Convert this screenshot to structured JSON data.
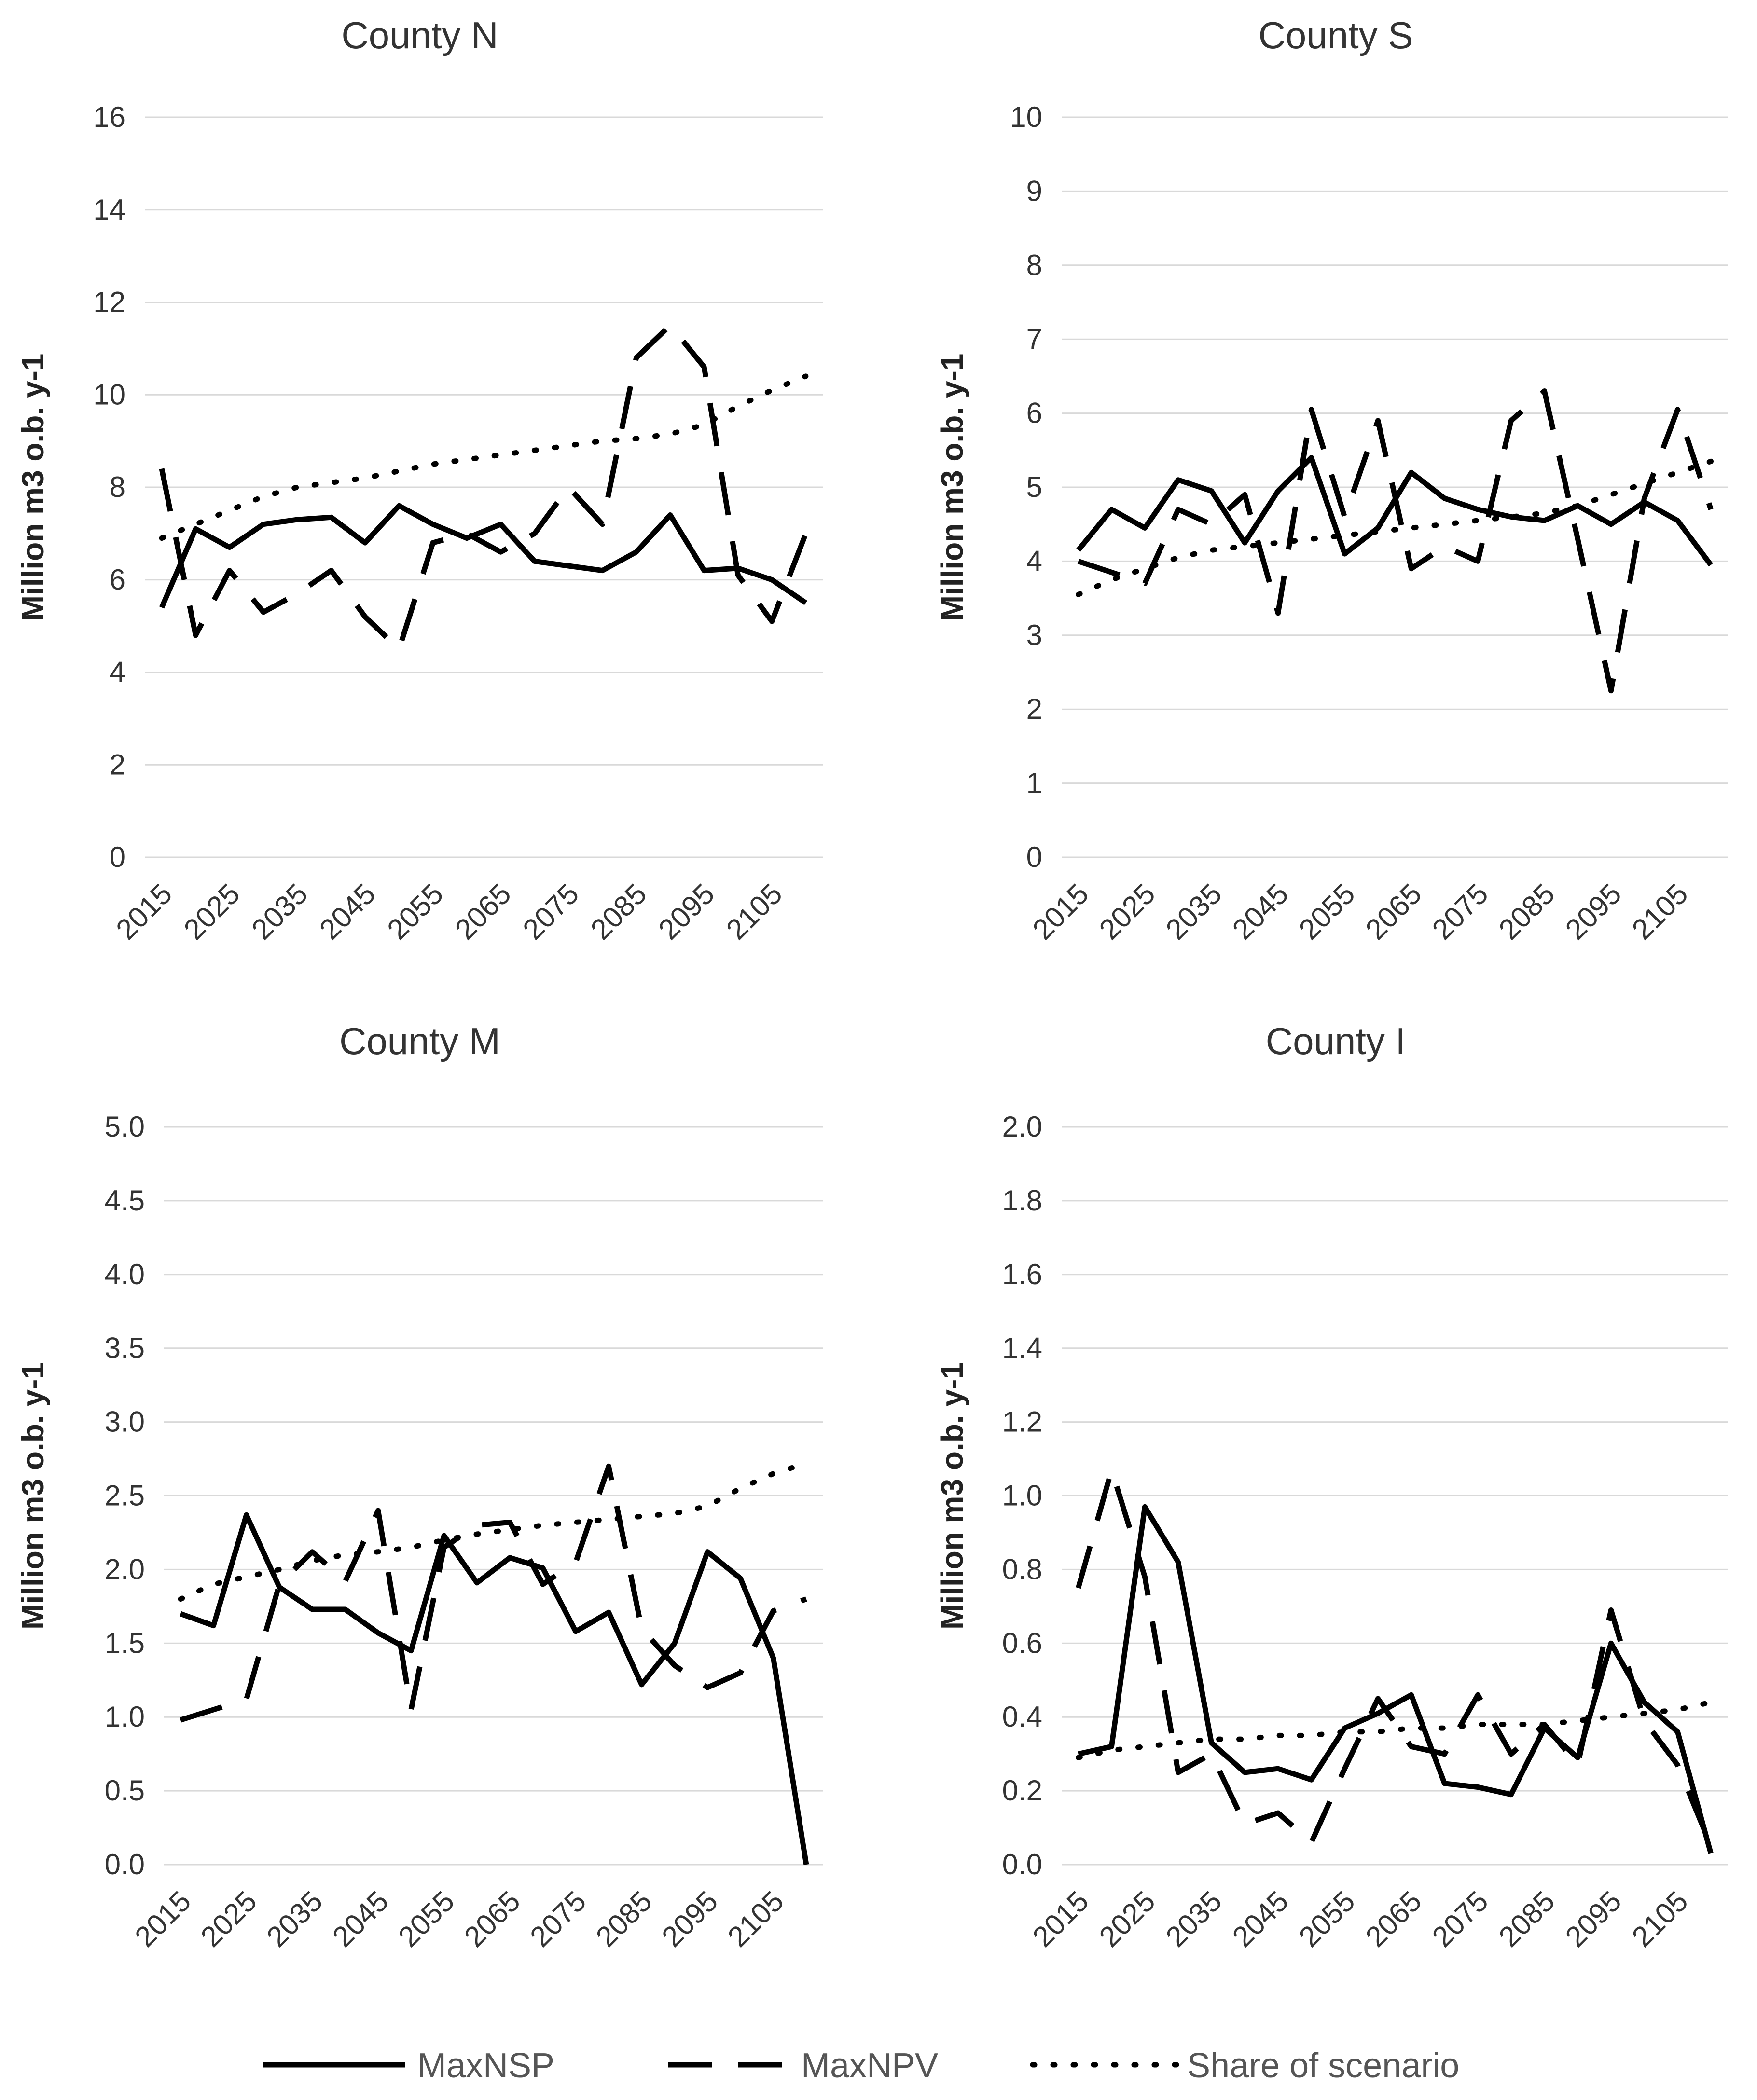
{
  "chart_data": [
    {
      "type": "line",
      "title": "County N",
      "ylabel": "Million m3 o.b. y-1",
      "ylim": [
        0,
        16
      ],
      "yticks": [
        "0",
        "2",
        "4",
        "6",
        "8",
        "10",
        "12",
        "14",
        "16"
      ],
      "xticks": [
        "2015",
        "2025",
        "2035",
        "2045",
        "2055",
        "2065",
        "2075",
        "2085",
        "2095",
        "2105"
      ],
      "x": [
        2015,
        2020,
        2025,
        2030,
        2035,
        2040,
        2045,
        2050,
        2055,
        2060,
        2065,
        2070,
        2075,
        2080,
        2085,
        2090,
        2095,
        2100,
        2105,
        2110
      ],
      "series": [
        {
          "name": "MaxNSP",
          "values": [
            5.4,
            7.1,
            6.7,
            7.2,
            7.3,
            7.35,
            6.8,
            7.6,
            7.2,
            6.9,
            7.2,
            6.4,
            6.3,
            6.2,
            6.6,
            7.4,
            6.2,
            6.25,
            6.0,
            5.5
          ]
        },
        {
          "name": "MaxNPV",
          "values": [
            8.4,
            4.8,
            6.2,
            5.3,
            5.7,
            6.2,
            5.2,
            4.5,
            6.8,
            7.0,
            6.6,
            7.0,
            8.0,
            7.2,
            10.8,
            11.5,
            10.6,
            6.1,
            5.1,
            7.0
          ]
        },
        {
          "name": "Share of scenario",
          "values": [
            6.9,
            7.2,
            7.5,
            7.8,
            8.0,
            8.1,
            8.2,
            8.35,
            8.5,
            8.6,
            8.7,
            8.8,
            8.9,
            9.0,
            9.05,
            9.15,
            9.35,
            9.75,
            10.1,
            10.4
          ]
        }
      ]
    },
    {
      "type": "line",
      "title": "County S",
      "ylabel": "Million m3 o.b. y-1",
      "ylim": [
        0,
        10
      ],
      "yticks": [
        "0",
        "1",
        "2",
        "3",
        "4",
        "5",
        "6",
        "7",
        "8",
        "9",
        "10"
      ],
      "xticks": [
        "2015",
        "2025",
        "2035",
        "2045",
        "2055",
        "2065",
        "2075",
        "2085",
        "2095",
        "2105"
      ],
      "x": [
        2015,
        2020,
        2025,
        2030,
        2035,
        2040,
        2045,
        2050,
        2055,
        2060,
        2065,
        2070,
        2075,
        2080,
        2085,
        2090,
        2095,
        2100,
        2105,
        2110
      ],
      "series": [
        {
          "name": "MaxNSP",
          "values": [
            4.15,
            4.7,
            4.45,
            5.1,
            4.95,
            4.25,
            4.95,
            5.4,
            4.1,
            4.45,
            5.2,
            4.85,
            4.7,
            4.6,
            4.55,
            4.75,
            4.5,
            4.8,
            4.55,
            3.95
          ]
        },
        {
          "name": "MaxNPV",
          "values": [
            4.0,
            3.85,
            3.7,
            4.7,
            4.5,
            4.9,
            3.3,
            6.05,
            4.6,
            5.9,
            3.9,
            4.2,
            4.0,
            5.9,
            6.3,
            4.3,
            2.25,
            4.85,
            6.05,
            4.7
          ]
        },
        {
          "name": "Share of scenario",
          "values": [
            3.55,
            3.75,
            3.9,
            4.05,
            4.15,
            4.2,
            4.25,
            4.3,
            4.35,
            4.4,
            4.45,
            4.5,
            4.55,
            4.6,
            4.65,
            4.75,
            4.9,
            5.05,
            5.2,
            5.35
          ]
        }
      ]
    },
    {
      "type": "line",
      "title": "County M",
      "ylabel": "Million m3 o.b. y-1",
      "ylim": [
        0,
        5
      ],
      "yticks": [
        "0.0",
        "0.5",
        "1.0",
        "1.5",
        "2.0",
        "2.5",
        "3.0",
        "3.5",
        "4.0",
        "4.5",
        "5.0"
      ],
      "xticks": [
        "2015",
        "2025",
        "2035",
        "2045",
        "2055",
        "2065",
        "2075",
        "2085",
        "2095",
        "2105"
      ],
      "x": [
        2015,
        2020,
        2025,
        2030,
        2035,
        2040,
        2045,
        2050,
        2055,
        2060,
        2065,
        2070,
        2075,
        2080,
        2085,
        2090,
        2095,
        2100,
        2105,
        2110
      ],
      "series": [
        {
          "name": "MaxNSP",
          "values": [
            1.7,
            1.62,
            2.37,
            1.88,
            1.73,
            1.73,
            1.57,
            1.45,
            2.23,
            1.91,
            2.08,
            2.01,
            1.58,
            1.71,
            1.22,
            1.5,
            2.12,
            1.94,
            1.4,
            0.0
          ]
        },
        {
          "name": "MaxNPV",
          "values": [
            0.98,
            1.05,
            1.12,
            1.9,
            2.12,
            1.92,
            2.4,
            1.05,
            2.15,
            2.3,
            2.32,
            1.9,
            2.05,
            2.7,
            1.6,
            1.35,
            1.2,
            1.3,
            1.72,
            1.8
          ]
        },
        {
          "name": "Share of scenario",
          "values": [
            1.8,
            1.9,
            1.95,
            2.0,
            2.06,
            2.1,
            2.12,
            2.15,
            2.2,
            2.24,
            2.27,
            2.3,
            2.32,
            2.34,
            2.36,
            2.38,
            2.43,
            2.55,
            2.65,
            2.72
          ]
        }
      ]
    },
    {
      "type": "line",
      "title": "County I",
      "ylabel": "Million m3 o.b. y-1",
      "ylim": [
        0,
        2
      ],
      "yticks": [
        "0.0",
        "0.2",
        "0.4",
        "0.6",
        "0.8",
        "1.0",
        "1.2",
        "1.4",
        "1.6",
        "1.8",
        "2.0"
      ],
      "xticks": [
        "2015",
        "2025",
        "2035",
        "2045",
        "2055",
        "2065",
        "2075",
        "2085",
        "2095",
        "2105"
      ],
      "x": [
        2015,
        2020,
        2025,
        2030,
        2035,
        2040,
        2045,
        2050,
        2055,
        2060,
        2065,
        2070,
        2075,
        2080,
        2085,
        2090,
        2095,
        2100,
        2105,
        2110
      ],
      "series": [
        {
          "name": "MaxNSP",
          "values": [
            0.3,
            0.32,
            0.97,
            0.82,
            0.33,
            0.25,
            0.26,
            0.23,
            0.37,
            0.41,
            0.46,
            0.22,
            0.21,
            0.19,
            0.37,
            0.29,
            0.6,
            0.44,
            0.36,
            0.03
          ]
        },
        {
          "name": "MaxNPV",
          "values": [
            0.75,
            1.07,
            0.78,
            0.25,
            0.3,
            0.11,
            0.14,
            0.06,
            0.26,
            0.45,
            0.32,
            0.3,
            0.46,
            0.3,
            0.38,
            0.27,
            0.69,
            0.39,
            0.27,
            0.05
          ]
        },
        {
          "name": "Share of scenario",
          "values": [
            0.29,
            0.31,
            0.32,
            0.33,
            0.34,
            0.34,
            0.35,
            0.35,
            0.36,
            0.36,
            0.37,
            0.37,
            0.38,
            0.38,
            0.38,
            0.39,
            0.4,
            0.41,
            0.42,
            0.44
          ]
        }
      ]
    }
  ],
  "legend": {
    "placement": "bottom",
    "items": [
      {
        "label": "MaxNSP",
        "style": "solid"
      },
      {
        "label": "MaxNPV",
        "style": "dashed"
      },
      {
        "label": "Share of scenario",
        "style": "dotted"
      }
    ]
  }
}
